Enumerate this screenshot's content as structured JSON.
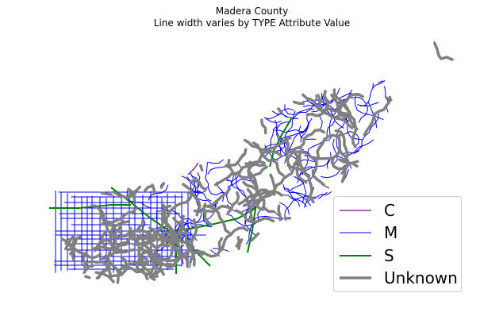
{
  "title": "Madera County",
  "subtitle": "Line width varies by TYPE Attribute Value",
  "legend": {
    "placement": "lower-right",
    "items": [
      {
        "label": "C",
        "color": "#8b2fa0",
        "width": 1.5
      },
      {
        "label": "M",
        "color": "#0000ff",
        "width": 1
      },
      {
        "label": "S",
        "color": "#008000",
        "width": 2
      },
      {
        "label": "Unknown",
        "color": "#808080",
        "width": 3.5
      }
    ]
  },
  "colors": {
    "C": "#8b2fa0",
    "M": "#0000ff",
    "S": "#008000",
    "Unknown": "#808080",
    "background": "#ffffff"
  }
}
